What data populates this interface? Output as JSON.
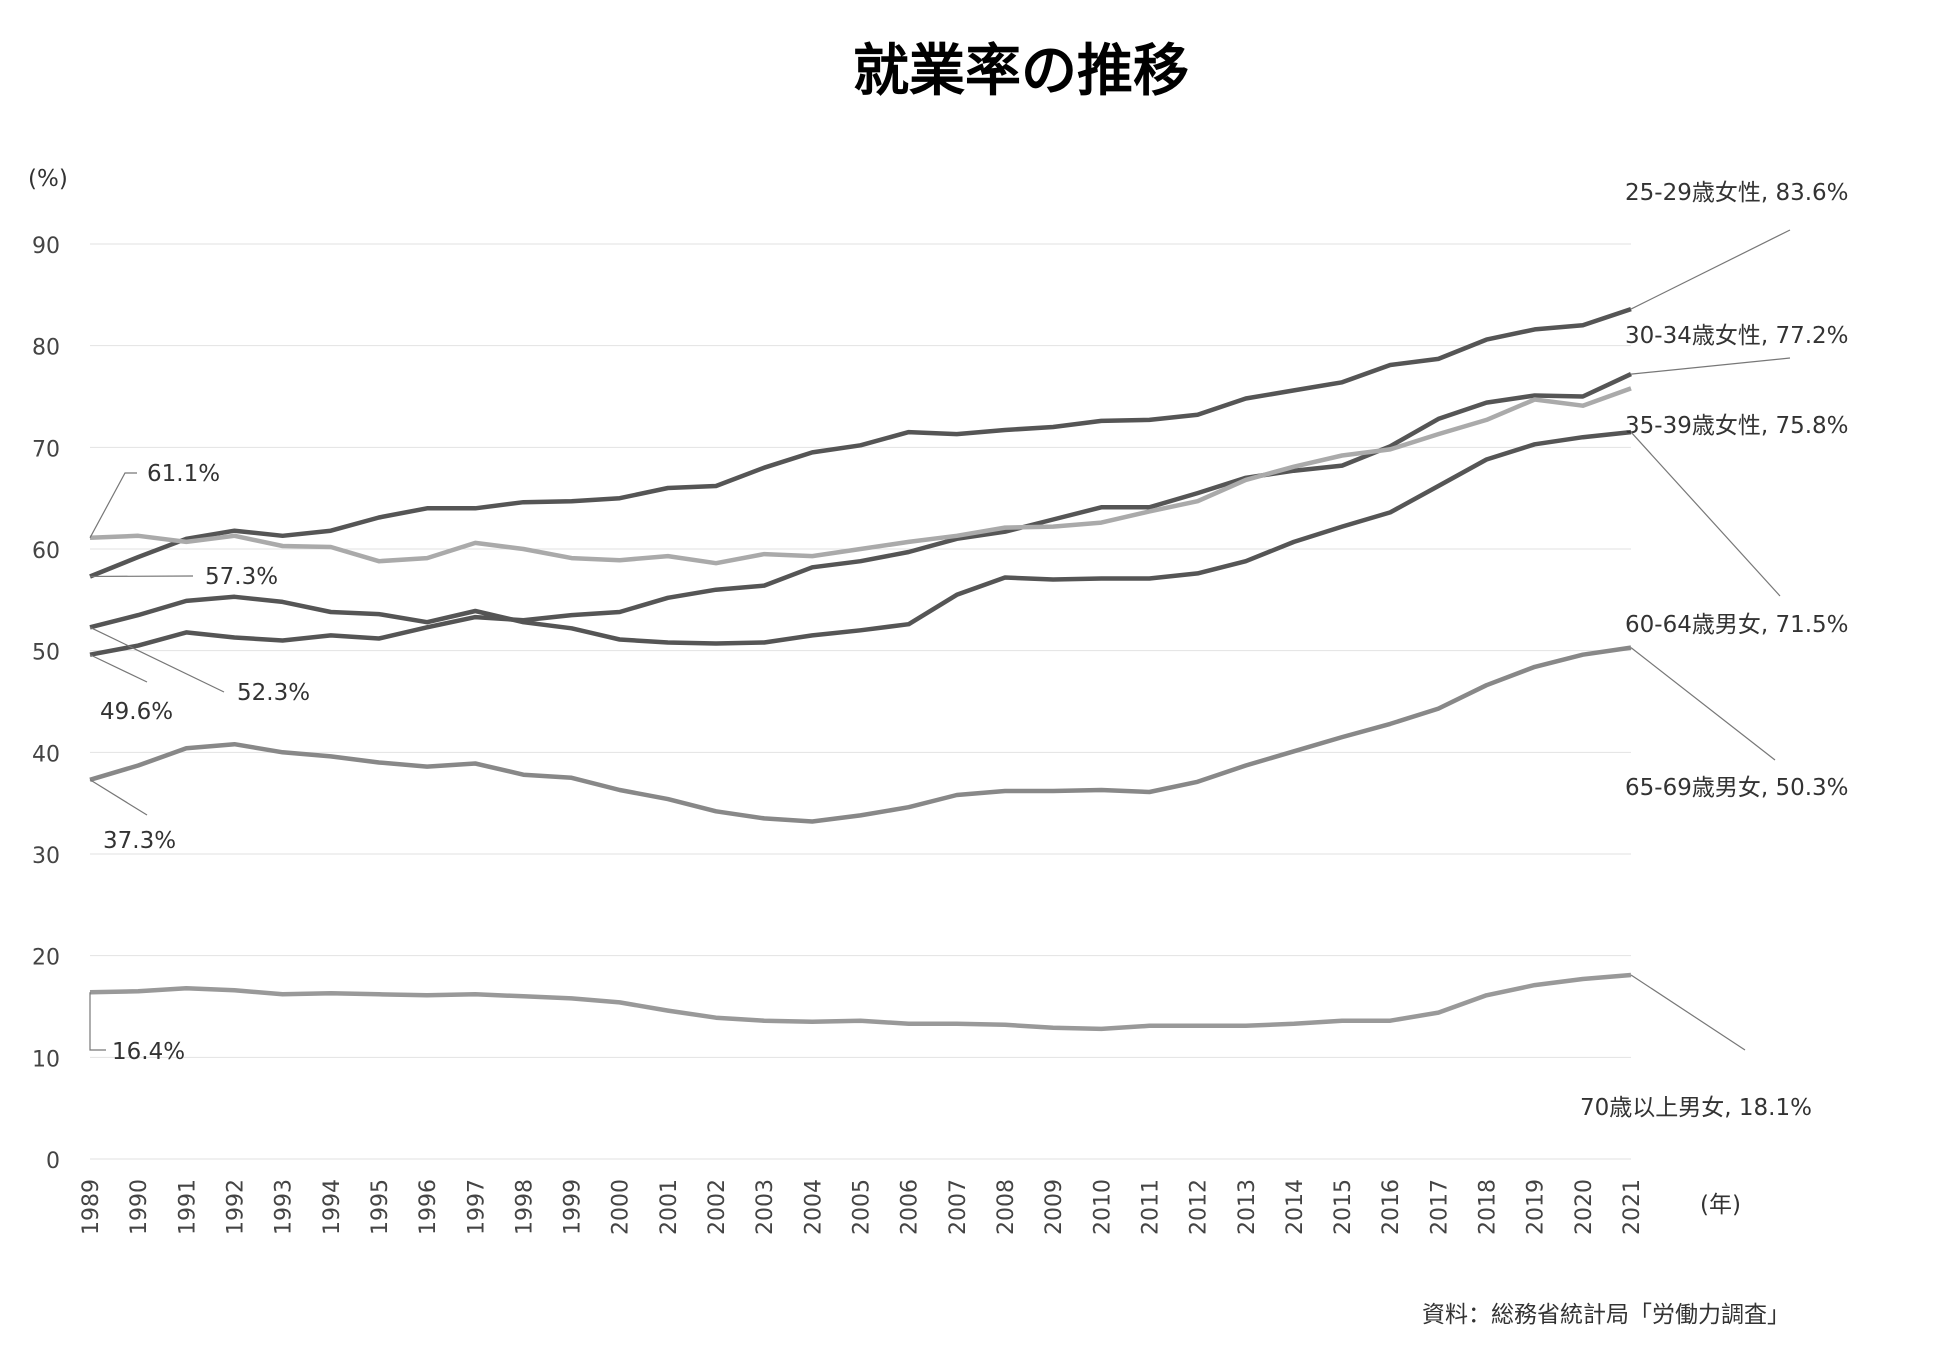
{
  "chart_data": {
    "type": "line",
    "title": "就業率の推移",
    "ylabel": "(%)",
    "xlabel": "(年)",
    "source": "資料：総務省統計局「労働力調査」",
    "ylim": [
      0,
      90
    ],
    "yticks": [
      0,
      10,
      20,
      30,
      40,
      50,
      60,
      70,
      80,
      90
    ],
    "grid": true,
    "x": [
      1989,
      1990,
      1991,
      1992,
      1993,
      1994,
      1995,
      1996,
      1997,
      1998,
      1999,
      2000,
      2001,
      2002,
      2003,
      2004,
      2005,
      2006,
      2007,
      2008,
      2009,
      2010,
      2011,
      2012,
      2013,
      2014,
      2015,
      2016,
      2017,
      2018,
      2019,
      2020,
      2021
    ],
    "series": [
      {
        "name": "25-29歳女性",
        "end_label": "25-29歳女性, 83.6%",
        "start_label": "57.3%",
        "color": "#555555",
        "values": [
          57.3,
          59.2,
          61.0,
          61.8,
          61.3,
          61.8,
          63.1,
          64.0,
          64.0,
          64.6,
          64.7,
          65.0,
          66.0,
          66.2,
          68.0,
          69.5,
          70.2,
          71.5,
          71.3,
          71.7,
          72.0,
          72.6,
          72.7,
          73.2,
          74.8,
          75.6,
          76.4,
          78.1,
          78.7,
          80.6,
          81.6,
          82.0,
          83.6
        ]
      },
      {
        "name": "30-34歳女性",
        "end_label": "30-34歳女性, 77.2%",
        "start_label": "49.6%",
        "color": "#555555",
        "values": [
          49.6,
          50.5,
          51.8,
          51.3,
          51.0,
          51.5,
          51.2,
          52.3,
          53.3,
          53.0,
          53.5,
          53.8,
          55.2,
          56.0,
          56.4,
          58.2,
          58.8,
          59.7,
          61.0,
          61.7,
          62.9,
          64.1,
          64.1,
          65.5,
          67.0,
          67.7,
          68.2,
          70.1,
          72.8,
          74.4,
          75.1,
          75.0,
          77.2
        ]
      },
      {
        "name": "35-39歳女性",
        "end_label": "35-39歳女性, 75.8%",
        "start_label": "61.1%",
        "color": "#aaaaaa",
        "values": [
          61.1,
          61.3,
          60.7,
          61.3,
          60.3,
          60.2,
          58.8,
          59.1,
          60.6,
          60.0,
          59.1,
          58.9,
          59.3,
          58.6,
          59.5,
          59.3,
          60.0,
          60.7,
          61.3,
          62.1,
          62.2,
          62.6,
          63.7,
          64.7,
          66.8,
          68.1,
          69.2,
          69.8,
          71.3,
          72.7,
          74.7,
          74.1,
          75.8
        ]
      },
      {
        "name": "60-64歳男女",
        "end_label": "60-64歳男女, 71.5%",
        "start_label": "52.3%",
        "color": "#555555",
        "values": [
          52.3,
          53.5,
          54.9,
          55.3,
          54.8,
          53.8,
          53.6,
          52.8,
          53.9,
          52.8,
          52.2,
          51.1,
          50.8,
          50.7,
          50.8,
          51.5,
          52.0,
          52.6,
          55.5,
          57.2,
          57.0,
          57.1,
          57.1,
          57.6,
          58.8,
          60.7,
          62.2,
          63.6,
          66.2,
          68.8,
          70.3,
          71.0,
          71.5
        ]
      },
      {
        "name": "65-69歳男女",
        "end_label": "65-69歳男女, 50.3%",
        "start_label": "37.3%",
        "color": "#888888",
        "values": [
          37.3,
          38.7,
          40.4,
          40.8,
          40.0,
          39.6,
          39.0,
          38.6,
          38.9,
          37.8,
          37.5,
          36.3,
          35.4,
          34.2,
          33.5,
          33.2,
          33.8,
          34.6,
          35.8,
          36.2,
          36.2,
          36.3,
          36.1,
          37.1,
          38.7,
          40.1,
          41.5,
          42.8,
          44.3,
          46.6,
          48.4,
          49.6,
          50.3
        ]
      },
      {
        "name": "70歳以上男女",
        "end_label": "70歳以上男女, 18.1%",
        "start_label": "16.4%",
        "color": "#999999",
        "values": [
          16.4,
          16.5,
          16.8,
          16.6,
          16.2,
          16.3,
          16.2,
          16.1,
          16.2,
          16.0,
          15.8,
          15.4,
          14.6,
          13.9,
          13.6,
          13.5,
          13.6,
          13.3,
          13.3,
          13.2,
          12.9,
          12.8,
          13.1,
          13.1,
          13.1,
          13.3,
          13.6,
          13.6,
          14.4,
          16.1,
          17.1,
          17.7,
          18.1
        ]
      }
    ]
  }
}
